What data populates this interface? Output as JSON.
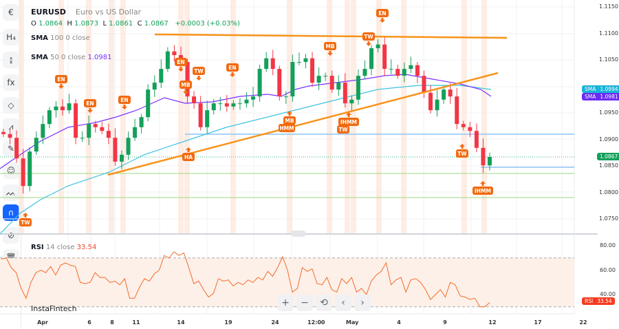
{
  "symbol": {
    "ticker": "EURUSD",
    "name": "Euro vs US Dollar"
  },
  "ohlc": {
    "o_label": "O",
    "o": "1.0864",
    "h_label": "H",
    "h": "1.0873",
    "l_label": "L",
    "l": "1.0861",
    "c_label": "C",
    "c": "1.0867",
    "change": "+0.0003 (+0.03%)"
  },
  "indicators": [
    {
      "name": "SMA",
      "params": "100 0 close",
      "value": ""
    },
    {
      "name": "SMA",
      "params": "50 0 close",
      "value": "1.0981"
    },
    {
      "name": "RSI",
      "params": "14 close",
      "value": "33.54"
    }
  ],
  "price_axis": [
    "1.1150",
    "1.1100",
    "1.1050",
    "1.0950",
    "1.0900",
    "1.0850",
    "1.0800",
    "1.0750"
  ],
  "rsi_axis": [
    "80.00",
    "60.00",
    "40.00"
  ],
  "time_axis": [
    "Apr",
    "6",
    "8",
    "11",
    "14",
    "19",
    "24",
    "12:00",
    "May",
    "4",
    "9",
    "12",
    "17",
    "22"
  ],
  "badges": {
    "sma100": {
      "label": "SMA",
      "value": "1.0994",
      "color": "#19b3d8"
    },
    "sma50": {
      "label": "SMA",
      "value": "1.0981",
      "color": "#6a2bf5"
    },
    "last": {
      "value": "1.0867",
      "color": "#13a05a"
    },
    "rsi": {
      "label": "RSI",
      "value": "33.54",
      "color": "#f53b1e"
    }
  },
  "colors": {
    "up": "#13a05a",
    "down": "#f23645",
    "pattern": "#f26a10",
    "trendline": "#f7931a"
  },
  "patterns": [
    {
      "text": "TW",
      "dir": "up"
    },
    {
      "text": "EN",
      "dir": "down"
    },
    {
      "text": "EN",
      "dir": "down"
    },
    {
      "text": "EN",
      "dir": "down"
    },
    {
      "text": "EN",
      "dir": "down"
    },
    {
      "text": "MB",
      "dir": "down"
    },
    {
      "text": "TW",
      "dir": "down"
    },
    {
      "text": "EN",
      "dir": "down"
    },
    {
      "text": "HA",
      "dir": "up"
    },
    {
      "text": "MB",
      "dir": "up"
    },
    {
      "text": "HMM",
      "dir": "none"
    },
    {
      "text": "MB",
      "dir": "down"
    },
    {
      "text": "TW",
      "dir": "down"
    },
    {
      "text": "EN",
      "dir": "down"
    },
    {
      "text": "IHMM",
      "dir": "up"
    },
    {
      "text": "TW",
      "dir": "none"
    },
    {
      "text": "TW",
      "dir": "up"
    },
    {
      "text": "IHMM",
      "dir": "up"
    }
  ],
  "candle_closes": [
    1.091,
    1.0903,
    1.0864,
    1.0812,
    1.0877,
    1.0903,
    1.0929,
    1.0955,
    1.0962,
    1.0955,
    1.0968,
    1.0903,
    1.0903,
    1.0929,
    1.0923,
    1.0916,
    1.0903,
    1.0858,
    1.0871,
    1.0903,
    1.0923,
    1.0942,
    1.0994,
    1.1007,
    1.1033,
    1.1066,
    1.1059,
    1.1046,
    1.0981,
    1.0968,
    1.0923,
    1.0955,
    1.0968,
    1.0968,
    1.0962,
    1.0968,
    1.0968,
    1.0975,
    1.0981,
    1.1033,
    1.1053,
    1.1033,
    1.0981,
    1.0981,
    1.1046,
    1.1046,
    1.1053,
    1.1007,
    1.102,
    1.102,
    1.0994,
    1.1007,
    1.0968,
    1.0975,
    1.102,
    1.1033,
    1.1072,
    1.1079,
    1.1033,
    1.1033,
    1.102,
    1.1033,
    1.104,
    1.102,
    1.0988,
    1.0955,
    1.0975,
    1.0994,
    1.0981,
    1.0929,
    1.0923,
    1.0916,
    1.0884,
    1.0851,
    1.0867
  ],
  "rsi_values": [
    69,
    70,
    62,
    58,
    45,
    37,
    50,
    58,
    60,
    58,
    63,
    56,
    64,
    66,
    64,
    63,
    50,
    49,
    50,
    58,
    54,
    54,
    50,
    51,
    48,
    53,
    37,
    37,
    46,
    53,
    51,
    57,
    60,
    72,
    70,
    75,
    72,
    74,
    62,
    49,
    51,
    44,
    38,
    41,
    53,
    51,
    52,
    47,
    50,
    48,
    52,
    50,
    54,
    52,
    59,
    55,
    62,
    71,
    60,
    42,
    45,
    62,
    59,
    61,
    49,
    48,
    54,
    44,
    42,
    53,
    49,
    54,
    42,
    45,
    40,
    51,
    56,
    59,
    66,
    48,
    52,
    54,
    42,
    52,
    53,
    50,
    44,
    36,
    40,
    44,
    38,
    50,
    48,
    39,
    38,
    36,
    37,
    30,
    30,
    33.54
  ],
  "controls": {
    "zoom_in": "+",
    "zoom_out": "−",
    "reset": "⟲",
    "back": "‹",
    "forward": "›"
  },
  "brand": "InstaFintech",
  "toolbar": [
    {
      "name": "symbol-flag-icon",
      "glyph": "€"
    },
    {
      "name": "interval-h4-icon",
      "glyph": "H₄"
    },
    {
      "name": "candles-icon",
      "glyph": "⫾"
    },
    {
      "name": "indicators-fx-icon",
      "glyph": "fx"
    },
    {
      "name": "shapes-icon",
      "glyph": "◇"
    },
    {
      "name": "fib-tools-icon",
      "glyph": "⩘"
    },
    {
      "name": "brush-icon",
      "glyph": "✎"
    },
    {
      "name": "emoji-icon",
      "glyph": "☺"
    },
    {
      "name": "patterns-icon",
      "glyph": "ᨓ"
    },
    {
      "name": "magnet-icon",
      "glyph": "∩"
    },
    {
      "name": "hide-drawings-icon",
      "glyph": "⊘"
    },
    {
      "name": "delete-all-icon",
      "glyph": "🗑"
    },
    {
      "name": "screenshot-icon",
      "glyph": "⎙"
    }
  ]
}
